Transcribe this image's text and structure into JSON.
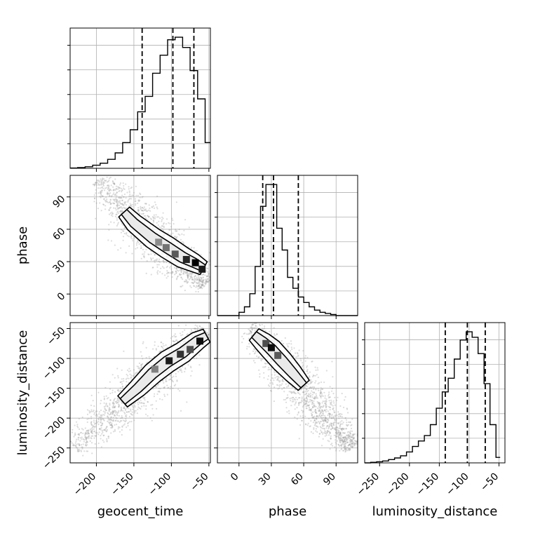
{
  "chart_data": {
    "type": "corner",
    "parameters": [
      "geocent_time",
      "phase",
      "luminosity_distance"
    ],
    "quantile_lines": [
      0.16,
      0.5,
      0.84
    ],
    "grid": true,
    "colors": {
      "line": "#000000",
      "scatter": "#9a9a9a",
      "grid": "#b0b0b0"
    },
    "axes": {
      "geocent_time": {
        "range": [
          -235,
          -48
        ],
        "ticks": [
          -200,
          -150,
          -100,
          -50
        ]
      },
      "phase": {
        "range": [
          -20,
          110
        ],
        "ticks": [
          0,
          30,
          60,
          90
        ]
      },
      "luminosity_distance": {
        "range": [
          -275,
          -40
        ],
        "ticks": [
          -250,
          -200,
          -150,
          -100,
          -50
        ]
      }
    },
    "histograms": {
      "geocent_time": {
        "bin_edges": [
          -235,
          -225,
          -215,
          -205,
          -195,
          -185,
          -175,
          -165,
          -155,
          -145,
          -135,
          -125,
          -115,
          -105,
          -95,
          -85,
          -75,
          -65,
          -55,
          -48
        ],
        "counts": [
          0.1,
          0.3,
          0.6,
          1.2,
          2,
          3.5,
          6,
          10,
          15,
          22,
          28,
          37,
          44,
          50,
          51,
          47,
          38,
          27,
          10
        ],
        "quantiles": [
          -139,
          -98,
          -70
        ]
      },
      "phase": {
        "bin_edges": [
          -20,
          -15,
          -10,
          -5,
          0,
          5,
          10,
          15,
          20,
          25,
          30,
          35,
          40,
          45,
          50,
          55,
          60,
          65,
          70,
          75,
          80,
          85,
          90,
          95,
          100,
          105,
          110
        ],
        "counts": [
          0,
          0,
          0,
          0,
          0.3,
          0.8,
          2,
          4.5,
          10,
          12,
          12,
          8,
          6,
          3.5,
          2.5,
          1.7,
          1.2,
          0.8,
          0.5,
          0.3,
          0.2,
          0.1,
          0,
          0,
          0,
          0
        ],
        "quantiles": [
          22,
          32,
          55
        ]
      },
      "luminosity_distance": {
        "bin_edges": [
          -275,
          -265,
          -255,
          -245,
          -235,
          -225,
          -215,
          -205,
          -195,
          -185,
          -175,
          -165,
          -155,
          -145,
          -135,
          -125,
          -115,
          -105,
          -95,
          -85,
          -75,
          -65,
          -55,
          -48
        ],
        "counts": [
          0,
          0.2,
          0.4,
          0.7,
          1.2,
          1.8,
          2.6,
          4,
          6,
          8,
          10,
          14,
          20,
          26,
          31,
          38,
          45,
          48,
          46,
          40,
          29,
          14,
          2
        ],
        "quantiles": [
          -140,
          -103,
          -73
        ]
      }
    },
    "pairs": [
      {
        "x": "geocent_time",
        "y": "phase",
        "scatter_line": {
          "x0": -200,
          "y0": 105,
          "x1": -55,
          "y1": 8
        },
        "ridge": [
          [
            -163,
            76
          ],
          [
            -150,
            66
          ],
          [
            -125,
            52
          ],
          [
            -105,
            43
          ],
          [
            -85,
            34
          ],
          [
            -70,
            29
          ],
          [
            -57,
            24
          ]
        ],
        "density_blocks": [
          {
            "x": -117,
            "y": 48,
            "shade": 0.55
          },
          {
            "x": -107,
            "y": 43,
            "shade": 0.45
          },
          {
            "x": -95,
            "y": 37,
            "shade": 0.35
          },
          {
            "x": -80,
            "y": 32,
            "shade": 0.15
          },
          {
            "x": -68,
            "y": 29,
            "shade": 0.0
          },
          {
            "x": -59,
            "y": 23,
            "shade": 0.1
          }
        ]
      },
      {
        "x": "geocent_time",
        "y": "luminosity_distance",
        "scatter_line": {
          "x0": -230,
          "y0": -250,
          "x1": -55,
          "y1": -52
        },
        "ridge": [
          [
            -165,
            -172
          ],
          [
            -145,
            -150
          ],
          [
            -125,
            -125
          ],
          [
            -105,
            -105
          ],
          [
            -85,
            -90
          ],
          [
            -65,
            -70
          ],
          [
            -53,
            -62
          ]
        ],
        "density_blocks": [
          {
            "x": -122,
            "y": -118,
            "shade": 0.5
          },
          {
            "x": -103,
            "y": -104,
            "shade": 0.1
          },
          {
            "x": -88,
            "y": -93,
            "shade": 0.2
          },
          {
            "x": -75,
            "y": -85,
            "shade": 0.3
          },
          {
            "x": -62,
            "y": -71,
            "shade": 0.05
          }
        ]
      },
      {
        "x": "phase",
        "y": "luminosity_distance",
        "scatter_line": {
          "x0": 10,
          "y0": -45,
          "x1": 105,
          "y1": -250
        },
        "ridge": [
          [
            14,
            -60
          ],
          [
            22,
            -72
          ],
          [
            30,
            -85
          ],
          [
            40,
            -105
          ],
          [
            50,
            -125
          ],
          [
            60,
            -145
          ]
        ],
        "density_blocks": [
          {
            "x": 25,
            "y": -75,
            "shade": 0.3
          },
          {
            "x": 30,
            "y": -82,
            "shade": 0.05
          },
          {
            "x": 36,
            "y": -95,
            "shade": 0.35
          }
        ]
      }
    ]
  }
}
